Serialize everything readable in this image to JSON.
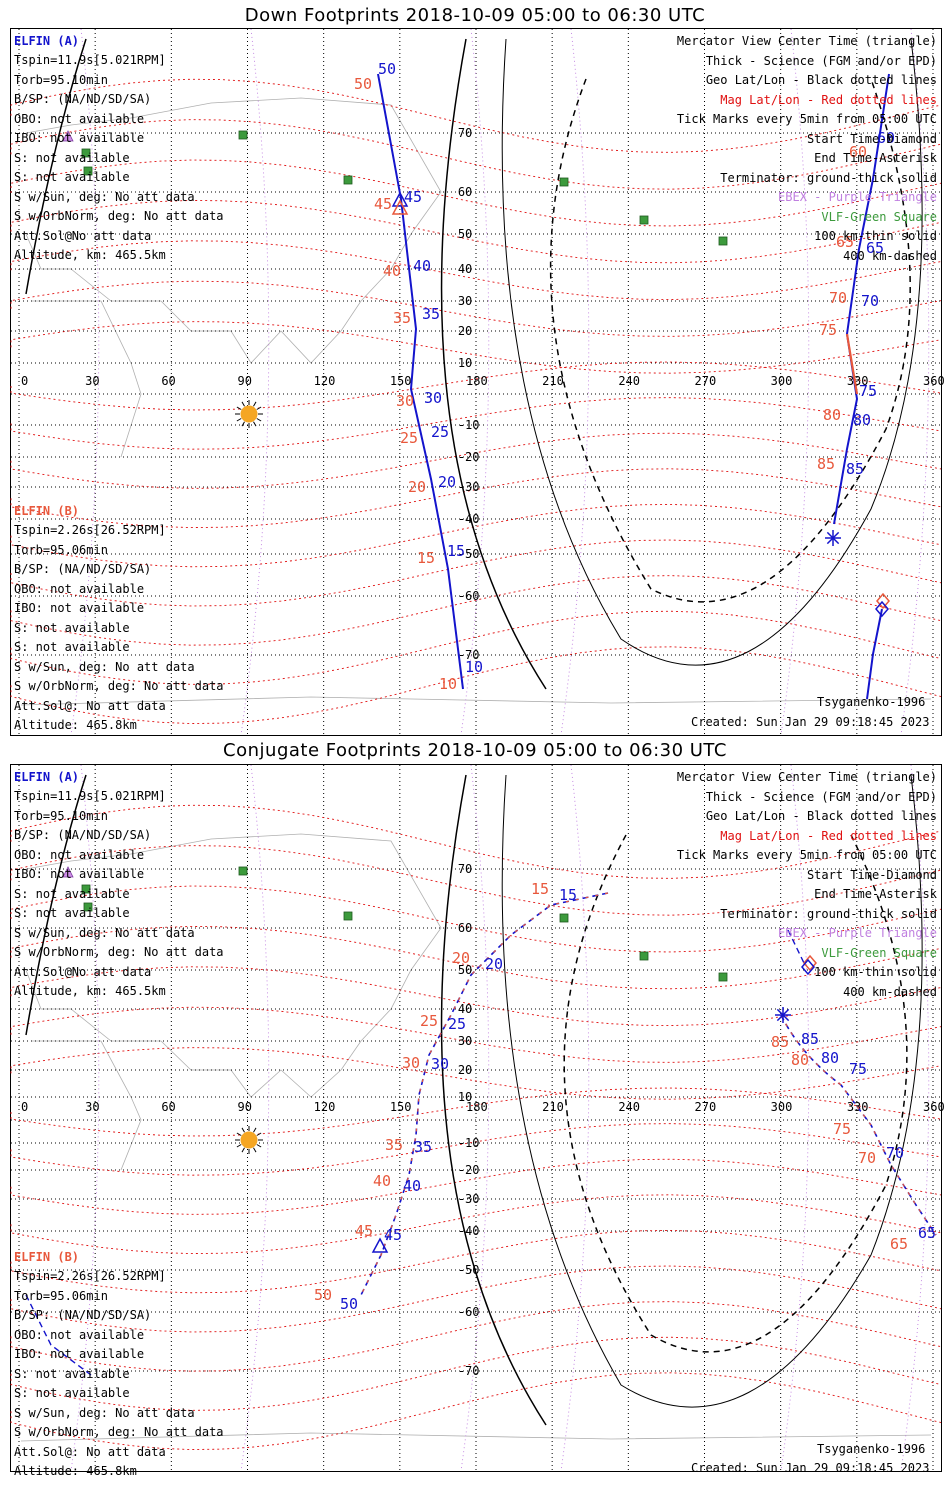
{
  "colors": {
    "elfin_a": "#1414cc",
    "elfin_b": "#e8583c",
    "geo_grid": "#000000",
    "mag_grid": "#e01010",
    "footprint_line": "#0000dd",
    "vlf": "#3c9a3c",
    "sun": "#f5a623",
    "ebex": "#c080e0",
    "coast": "#b0b0b0"
  },
  "grid": {
    "lon_labels": [
      "0",
      "30",
      "60",
      "90",
      "120",
      "150",
      "180",
      "210",
      "240",
      "270",
      "300",
      "330",
      "360"
    ],
    "lat_labels": [
      "70",
      "60",
      "50",
      "40",
      "30",
      "20",
      "10",
      "-10",
      "-20",
      "-30",
      "-40",
      "-50",
      "-60",
      "-70"
    ]
  },
  "panels": [
    {
      "id": "down",
      "title": "Down Footprints 2018-10-09 05:00 to 06:30 UTC",
      "left": {
        "a_title": "ELFIN (A)",
        "a_lines": [
          "Tspin=11.9s[5.021RPM]",
          "Torb=95.10min",
          "B/SP: (NA/ND/SD/SA)",
          "OBO: not available",
          "IBO: not available",
          "S: not available",
          "S: not available",
          "S w/Sun, deg: No att data",
          "S w/OrbNorm, deg: No att data",
          "Att.Sol@No att data",
          "Altitude, km: 465.5km"
        ],
        "b_title": "ELFIN (B)",
        "b_lines": [
          "Tspin=2.26s[26.52RPM]",
          "Torb=95.06min",
          "B/SP: (NA/ND/SD/SA)",
          "OBO: not available",
          "IBO: not available",
          "S: not available",
          "S: not available",
          "S w/Sun, deg: No att data",
          "S w/OrbNorm, deg: No att data",
          "Att.Sol@: No att data",
          "Altitude: 465.8km"
        ]
      },
      "right": {
        "lines": [
          "Mercator View Center Time (triangle)",
          "Thick - Science (FGM and/or EPD)",
          "Geo Lat/Lon - Black dotted lines",
          "Mag Lat/Lon - Red dotted lines",
          "Tick Marks every 5min from 05:00 UTC",
          "Start Time-Diamond",
          "End Time-Asterisk",
          "Terminator: ground-thick solid",
          "EBEX - Purple Triangle",
          "VLF-Green Square",
          "100 km-thin solid",
          "400 km-dashed"
        ],
        "model": "Tsyganenko-1996",
        "created": "Created: Sun Jan 29 09:18:45 2023"
      },
      "track_a_ticks": [
        "50",
        "45",
        "40",
        "35",
        "30",
        "25",
        "20",
        "15",
        "10"
      ],
      "track_b_ticks": [
        "50",
        "45",
        "40",
        "35",
        "30",
        "25",
        "20",
        "15",
        "10"
      ],
      "track_a_east_ticks": [
        "60",
        "65",
        "70",
        "75",
        "80",
        "85"
      ],
      "track_b_east_ticks": [
        "60",
        "65",
        "70",
        "75",
        "80",
        "85"
      ]
    },
    {
      "id": "conjugate",
      "title": "Conjugate Footprints 2018-10-09 05:00 to 06:30 UTC",
      "left": {
        "a_title": "ELFIN (A)",
        "a_lines": [
          "Tspin=11.9s[5.021RPM]",
          "Torb=95.10min",
          "B/SP: (NA/ND/SD/SA)",
          "OBO: not available",
          "IBO: not available",
          "S: not available",
          "S: not available",
          "S w/Sun, deg: No att data",
          "S w/OrbNorm, deg: No att data",
          "Att.Sol@No att data",
          "Altitude, km: 465.5km"
        ],
        "b_title": "ELFIN (B)",
        "b_lines": [
          "Tspin=2.26s[26.52RPM]",
          "Torb=95.06min",
          "B/SP: (NA/ND/SD/SA)",
          "OBO: not available",
          "IBO: not available",
          "S: not available",
          "S: not available",
          "S w/Sun, deg: No att data",
          "S w/OrbNorm, deg: No att data",
          "Att.Sol@: No att data",
          "Altitude: 465.8km"
        ]
      },
      "right": {
        "lines": [
          "Mercator View Center Time (triangle)",
          "Thick - Science (FGM and/or EPD)",
          "Geo Lat/Lon - Black dotted lines",
          "Mag Lat/Lon - Red dotted lines",
          "Tick Marks every 5min from 05:00 UTC",
          "Start Time-Diamond",
          "End Time-Asterisk",
          "Terminator: ground-thick solid",
          "EBEX - Purple Triangle",
          "VLF-Green Square",
          "100 km-thin solid",
          "400 km-dashed"
        ],
        "model": "Tsyganenko-1996",
        "created": "Created: Sun Jan 29 09:18:45 2023"
      },
      "track_a_ticks": [
        "15",
        "20",
        "25",
        "30",
        "35",
        "40",
        "45",
        "50"
      ],
      "track_b_ticks": [
        "15",
        "20",
        "25",
        "30",
        "35",
        "40",
        "45",
        "50"
      ],
      "track_a_east_ticks": [
        "85",
        "80",
        "75",
        "70",
        "65"
      ],
      "track_b_east_ticks": [
        "85",
        "80",
        "75",
        "70",
        "65"
      ]
    }
  ]
}
